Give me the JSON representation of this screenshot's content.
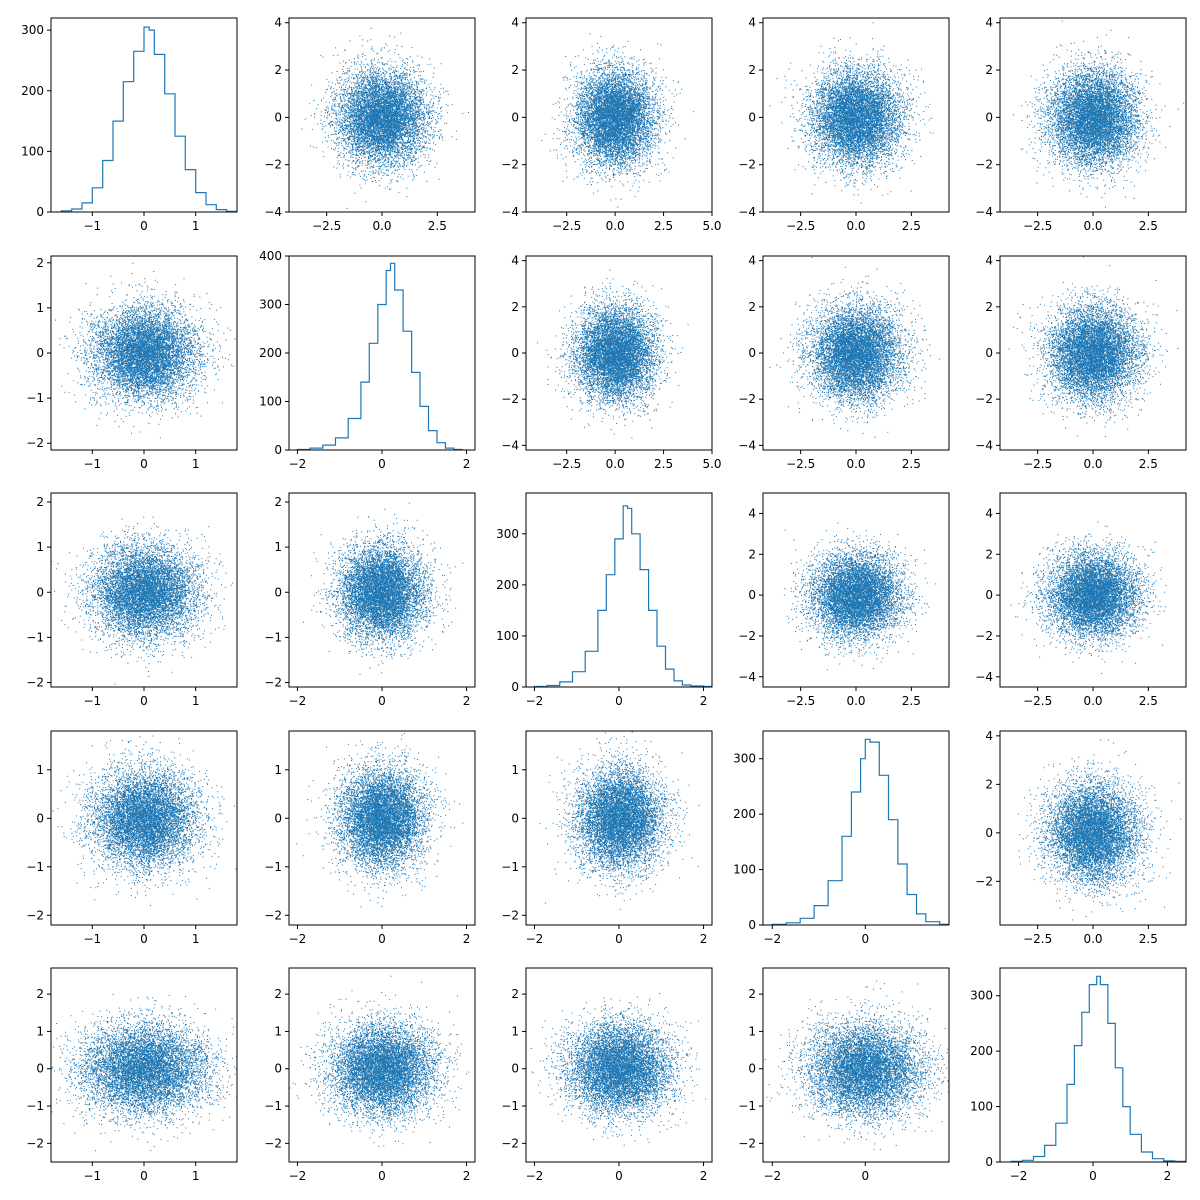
{
  "figure": {
    "layout": "5x5 pair plot",
    "series_color": "#1f77b4"
  },
  "chart_data": [
    {
      "panel": "r0c0",
      "type": "area",
      "subtype": "step-histogram",
      "variable": 0,
      "xlim": [
        -1.8,
        1.8
      ],
      "ylim": [
        0,
        320
      ],
      "xticks": [
        -1,
        0,
        1
      ],
      "yticks": [
        0,
        100,
        200,
        300
      ],
      "x": [
        -1.6,
        -1.4,
        -1.2,
        -1.0,
        -0.8,
        -0.6,
        -0.4,
        -0.2,
        0.0,
        0.1,
        0.2,
        0.4,
        0.6,
        0.8,
        1.0,
        1.2,
        1.4,
        1.6
      ],
      "y": [
        2,
        5,
        15,
        40,
        85,
        150,
        215,
        265,
        305,
        300,
        260,
        195,
        125,
        70,
        32,
        12,
        4,
        1
      ]
    },
    {
      "panel": "r0c1",
      "type": "scatter",
      "x_var": 1,
      "y_var": 0,
      "xlim": [
        -4.2,
        4.2
      ],
      "ylim": [
        -4,
        4.2
      ],
      "xticks": [
        -2.5,
        0.0,
        2.5
      ],
      "yticks": [
        -4,
        -2,
        0,
        2,
        4
      ],
      "center": [
        0,
        0
      ],
      "spread": [
        1.0,
        1.0
      ],
      "n": 8000
    },
    {
      "panel": "r0c2",
      "type": "scatter",
      "x_var": 2,
      "y_var": 0,
      "xlim": [
        -4.6,
        5.0
      ],
      "ylim": [
        -4,
        4.2
      ],
      "xticks": [
        -2.5,
        0.0,
        2.5,
        5.0
      ],
      "yticks": [
        -4,
        -2,
        0,
        2,
        4
      ],
      "center": [
        0,
        0
      ],
      "spread": [
        1.0,
        1.0
      ],
      "n": 8000
    },
    {
      "panel": "r0c3",
      "type": "scatter",
      "x_var": 3,
      "y_var": 0,
      "xlim": [
        -4.2,
        4.2
      ],
      "ylim": [
        -4,
        4.2
      ],
      "xticks": [
        -2.5,
        0.0,
        2.5
      ],
      "yticks": [
        -4,
        -2,
        0,
        2,
        4
      ],
      "center": [
        0,
        0
      ],
      "spread": [
        1.0,
        1.0
      ],
      "n": 8000
    },
    {
      "panel": "r0c4",
      "type": "scatter",
      "x_var": 4,
      "y_var": 0,
      "xlim": [
        -4.2,
        4.2
      ],
      "ylim": [
        -4,
        4.2
      ],
      "xticks": [
        -2.5,
        0.0,
        2.5
      ],
      "yticks": [
        -4,
        -2,
        0,
        2,
        4
      ],
      "center": [
        0,
        0
      ],
      "spread": [
        1.0,
        1.0
      ],
      "n": 8000
    },
    {
      "panel": "r1c0",
      "type": "scatter",
      "x_var": 0,
      "y_var": 1,
      "xlim": [
        -1.8,
        1.8
      ],
      "ylim": [
        -2.15,
        2.15
      ],
      "xticks": [
        -1,
        0,
        1
      ],
      "yticks": [
        -2,
        -1,
        0,
        1,
        2
      ],
      "center": [
        0,
        0
      ],
      "spread": [
        0.5,
        0.5
      ],
      "n": 8000
    },
    {
      "panel": "r1c1",
      "type": "area",
      "subtype": "step-histogram",
      "variable": 1,
      "xlim": [
        -2.2,
        2.2
      ],
      "ylim": [
        0,
        400
      ],
      "xticks": [
        -2,
        0,
        2
      ],
      "yticks": [
        0,
        100,
        200,
        300,
        400
      ],
      "x": [
        -2.0,
        -1.7,
        -1.4,
        -1.1,
        -0.8,
        -0.5,
        -0.3,
        -0.1,
        0.1,
        0.2,
        0.3,
        0.5,
        0.7,
        0.9,
        1.1,
        1.3,
        1.5,
        1.7
      ],
      "y": [
        1,
        4,
        10,
        25,
        65,
        140,
        220,
        300,
        370,
        385,
        330,
        245,
        160,
        90,
        40,
        15,
        4,
        1
      ]
    },
    {
      "panel": "r1c2",
      "type": "scatter",
      "x_var": 2,
      "y_var": 1,
      "xlim": [
        -4.6,
        5.0
      ],
      "ylim": [
        -4.2,
        4.2
      ],
      "xticks": [
        -2.5,
        0.0,
        2.5,
        5.0
      ],
      "yticks": [
        -4,
        -2,
        0,
        2,
        4
      ],
      "center": [
        0,
        0
      ],
      "spread": [
        1.0,
        1.0
      ],
      "n": 8000
    },
    {
      "panel": "r1c3",
      "type": "scatter",
      "x_var": 3,
      "y_var": 1,
      "xlim": [
        -4.2,
        4.2
      ],
      "ylim": [
        -4.2,
        4.2
      ],
      "xticks": [
        -2.5,
        0.0,
        2.5
      ],
      "yticks": [
        -4,
        -2,
        0,
        2,
        4
      ],
      "center": [
        0,
        0
      ],
      "spread": [
        1.0,
        1.0
      ],
      "n": 8000
    },
    {
      "panel": "r1c4",
      "type": "scatter",
      "x_var": 4,
      "y_var": 1,
      "xlim": [
        -4.2,
        4.2
      ],
      "ylim": [
        -4.2,
        4.2
      ],
      "xticks": [
        -2.5,
        0.0,
        2.5
      ],
      "yticks": [
        -4,
        -2,
        0,
        2,
        4
      ],
      "center": [
        0,
        0
      ],
      "spread": [
        1.0,
        1.0
      ],
      "n": 8000
    },
    {
      "panel": "r2c0",
      "type": "scatter",
      "x_var": 0,
      "y_var": 2,
      "xlim": [
        -1.8,
        1.8
      ],
      "ylim": [
        -2.1,
        2.2
      ],
      "xticks": [
        -1,
        0,
        1
      ],
      "yticks": [
        -2,
        -1,
        0,
        1,
        2
      ],
      "center": [
        0,
        0
      ],
      "spread": [
        0.5,
        0.5
      ],
      "n": 8000
    },
    {
      "panel": "r2c1",
      "type": "scatter",
      "x_var": 1,
      "y_var": 2,
      "xlim": [
        -2.2,
        2.2
      ],
      "ylim": [
        -2.1,
        2.2
      ],
      "xticks": [
        -2,
        0,
        2
      ],
      "yticks": [
        -2,
        -1,
        0,
        1,
        2
      ],
      "center": [
        0,
        0
      ],
      "spread": [
        0.5,
        0.5
      ],
      "n": 8000
    },
    {
      "panel": "r2c2",
      "type": "area",
      "subtype": "step-histogram",
      "variable": 2,
      "xlim": [
        -2.2,
        2.2
      ],
      "ylim": [
        0,
        380
      ],
      "xticks": [
        -2,
        0,
        2
      ],
      "yticks": [
        0,
        100,
        200,
        300
      ],
      "x": [
        -2.0,
        -1.7,
        -1.4,
        -1.1,
        -0.8,
        -0.5,
        -0.3,
        -0.1,
        0.1,
        0.2,
        0.3,
        0.5,
        0.7,
        0.9,
        1.1,
        1.3,
        1.5,
        1.7,
        2.0
      ],
      "y": [
        1,
        3,
        10,
        30,
        70,
        150,
        220,
        290,
        355,
        350,
        300,
        230,
        150,
        80,
        35,
        12,
        4,
        2,
        1
      ]
    },
    {
      "panel": "r2c3",
      "type": "scatter",
      "x_var": 3,
      "y_var": 2,
      "xlim": [
        -4.2,
        4.2
      ],
      "ylim": [
        -4.5,
        5.0
      ],
      "xticks": [
        -2.5,
        0.0,
        2.5
      ],
      "yticks": [
        -4,
        -2,
        0,
        2,
        4
      ],
      "center": [
        0,
        0
      ],
      "spread": [
        1.0,
        1.0
      ],
      "n": 8000
    },
    {
      "panel": "r2c4",
      "type": "scatter",
      "x_var": 4,
      "y_var": 2,
      "xlim": [
        -4.2,
        4.2
      ],
      "ylim": [
        -4.5,
        5.0
      ],
      "xticks": [
        -2.5,
        0.0,
        2.5
      ],
      "yticks": [
        -4,
        -2,
        0,
        2,
        4
      ],
      "center": [
        0,
        0
      ],
      "spread": [
        1.0,
        1.0
      ],
      "n": 8000
    },
    {
      "panel": "r3c0",
      "type": "scatter",
      "x_var": 0,
      "y_var": 3,
      "xlim": [
        -1.8,
        1.8
      ],
      "ylim": [
        -2.2,
        1.8
      ],
      "xticks": [
        -1,
        0,
        1
      ],
      "yticks": [
        -2,
        -1,
        0,
        1
      ],
      "center": [
        0,
        0
      ],
      "spread": [
        0.5,
        0.5
      ],
      "n": 8000
    },
    {
      "panel": "r3c1",
      "type": "scatter",
      "x_var": 1,
      "y_var": 3,
      "xlim": [
        -2.2,
        2.2
      ],
      "ylim": [
        -2.2,
        1.8
      ],
      "xticks": [
        -2,
        0,
        2
      ],
      "yticks": [
        -2,
        -1,
        0,
        1
      ],
      "center": [
        0,
        0
      ],
      "spread": [
        0.5,
        0.5
      ],
      "n": 8000
    },
    {
      "panel": "r3c2",
      "type": "scatter",
      "x_var": 2,
      "y_var": 3,
      "xlim": [
        -2.2,
        2.2
      ],
      "ylim": [
        -2.2,
        1.8
      ],
      "xticks": [
        -2,
        0,
        2
      ],
      "yticks": [
        -2,
        -1,
        0,
        1
      ],
      "center": [
        0,
        0
      ],
      "spread": [
        0.5,
        0.5
      ],
      "n": 8000
    },
    {
      "panel": "r3c3",
      "type": "area",
      "subtype": "step-histogram",
      "variable": 3,
      "xlim": [
        -2.2,
        1.8
      ],
      "ylim": [
        0,
        350
      ],
      "xticks": [
        -2,
        0
      ],
      "yticks": [
        0,
        100,
        200,
        300
      ],
      "x": [
        -2.0,
        -1.7,
        -1.4,
        -1.1,
        -0.8,
        -0.5,
        -0.3,
        -0.1,
        0.0,
        0.1,
        0.3,
        0.5,
        0.7,
        0.9,
        1.1,
        1.3,
        1.6
      ],
      "y": [
        1,
        4,
        12,
        35,
        80,
        160,
        240,
        300,
        335,
        330,
        270,
        190,
        110,
        55,
        20,
        6,
        1
      ]
    },
    {
      "panel": "r3c4",
      "type": "scatter",
      "x_var": 4,
      "y_var": 3,
      "xlim": [
        -4.2,
        4.2
      ],
      "ylim": [
        -3.8,
        4.2
      ],
      "xticks": [
        -2.5,
        0.0,
        2.5
      ],
      "yticks": [
        -2,
        0,
        2,
        4
      ],
      "center": [
        0,
        0
      ],
      "spread": [
        1.0,
        1.0
      ],
      "n": 8000
    },
    {
      "panel": "r4c0",
      "type": "scatter",
      "x_var": 0,
      "y_var": 4,
      "xlim": [
        -1.8,
        1.8
      ],
      "ylim": [
        -2.5,
        2.7
      ],
      "xticks": [
        -1,
        0,
        1
      ],
      "yticks": [
        -2,
        -1,
        0,
        1,
        2
      ],
      "center": [
        0,
        0
      ],
      "spread": [
        0.6,
        0.6
      ],
      "n": 8000
    },
    {
      "panel": "r4c1",
      "type": "scatter",
      "x_var": 1,
      "y_var": 4,
      "xlim": [
        -2.2,
        2.2
      ],
      "ylim": [
        -2.5,
        2.7
      ],
      "xticks": [
        -2,
        0,
        2
      ],
      "yticks": [
        -2,
        -1,
        0,
        1,
        2
      ],
      "center": [
        0,
        0
      ],
      "spread": [
        0.6,
        0.6
      ],
      "n": 8000
    },
    {
      "panel": "r4c2",
      "type": "scatter",
      "x_var": 2,
      "y_var": 4,
      "xlim": [
        -2.2,
        2.2
      ],
      "ylim": [
        -2.5,
        2.7
      ],
      "xticks": [
        -2,
        0,
        2
      ],
      "yticks": [
        -2,
        -1,
        0,
        1,
        2
      ],
      "center": [
        0,
        0
      ],
      "spread": [
        0.6,
        0.6
      ],
      "n": 8000
    },
    {
      "panel": "r4c3",
      "type": "scatter",
      "x_var": 3,
      "y_var": 4,
      "xlim": [
        -2.2,
        1.8
      ],
      "ylim": [
        -2.5,
        2.7
      ],
      "xticks": [
        -2,
        0
      ],
      "yticks": [
        -2,
        -1,
        0,
        1,
        2
      ],
      "center": [
        0,
        0
      ],
      "spread": [
        0.6,
        0.6
      ],
      "n": 8000
    },
    {
      "panel": "r4c4",
      "type": "area",
      "subtype": "step-histogram",
      "variable": 4,
      "xlim": [
        -2.5,
        2.5
      ],
      "ylim": [
        0,
        350
      ],
      "xticks": [
        -2,
        0,
        2
      ],
      "yticks": [
        0,
        100,
        200,
        300
      ],
      "x": [
        -2.2,
        -1.9,
        -1.6,
        -1.3,
        -1.0,
        -0.7,
        -0.5,
        -0.3,
        -0.1,
        0.1,
        0.2,
        0.4,
        0.6,
        0.8,
        1.0,
        1.3,
        1.6,
        1.9,
        2.2
      ],
      "y": [
        1,
        3,
        10,
        30,
        70,
        140,
        210,
        270,
        320,
        335,
        320,
        250,
        170,
        100,
        50,
        18,
        6,
        2,
        1
      ]
    }
  ]
}
